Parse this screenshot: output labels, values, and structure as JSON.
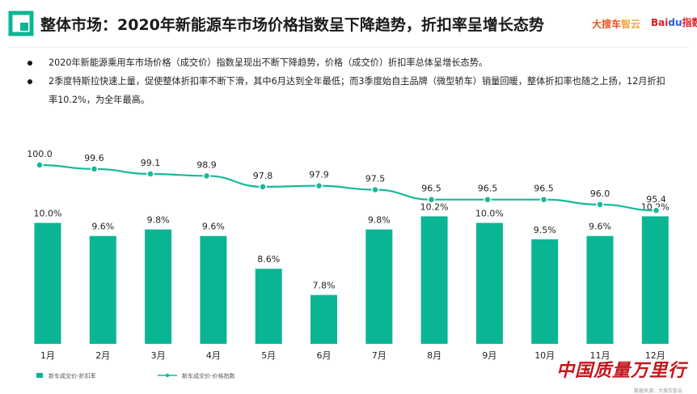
{
  "header": {
    "title": "整体市场：2020年新能源车市场价格指数呈下降趋势，折扣率呈增长态势",
    "brand_sohu_part1": "大搜车",
    "brand_sohu_part2": "智云",
    "brand_baidu": "Bai",
    "brand_baidu_paw": "du",
    "brand_baidu_suffix": "指数"
  },
  "bullets": [
    "2020年新能源乘用车市场价格（成交价）指数呈现出不断下降趋势，价格（成交价）折扣率总体呈增长态势。",
    "2季度特斯拉快速上量，促使整体折扣率不断下滑，其中6月达到全年最低；而3季度始自主品牌（微型轿车）销量回暖，整体折扣率也随之上扬，12月折扣率10.2%，为全年最高。"
  ],
  "chart_data": {
    "type": "bar",
    "categories": [
      "1月",
      "2月",
      "3月",
      "4月",
      "5月",
      "6月",
      "7月",
      "8月",
      "9月",
      "10月",
      "11月",
      "12月"
    ],
    "series": [
      {
        "name": "新车成交价-折扣率",
        "type": "bar",
        "values": [
          10.0,
          9.6,
          9.8,
          9.6,
          8.6,
          7.8,
          9.8,
          10.2,
          10.0,
          9.5,
          9.6,
          10.2
        ],
        "labels": [
          "10.0%",
          "9.6%",
          "9.8%",
          "9.6%",
          "8.6%",
          "7.8%",
          "9.8%",
          "10.2%",
          "10.0%",
          "9.5%",
          "9.6%",
          "10.2%"
        ],
        "color": "#0ab594"
      },
      {
        "name": "新车成交价-价格指数",
        "type": "line",
        "values": [
          100.0,
          99.6,
          99.1,
          98.9,
          97.8,
          97.9,
          97.5,
          96.5,
          96.5,
          96.5,
          96.0,
          95.4
        ],
        "labels": [
          "100.0",
          "99.6",
          "99.1",
          "98.9",
          "97.8",
          "97.9",
          "97.5",
          "96.5",
          "96.5",
          "96.5",
          "96.0",
          "95.4"
        ],
        "color": "#17b89a"
      }
    ],
    "legend_position": "bottom-left",
    "grid": false
  },
  "footer": {
    "source": "数据来源：大搜车智云",
    "watermark": "中国质量万里行"
  }
}
